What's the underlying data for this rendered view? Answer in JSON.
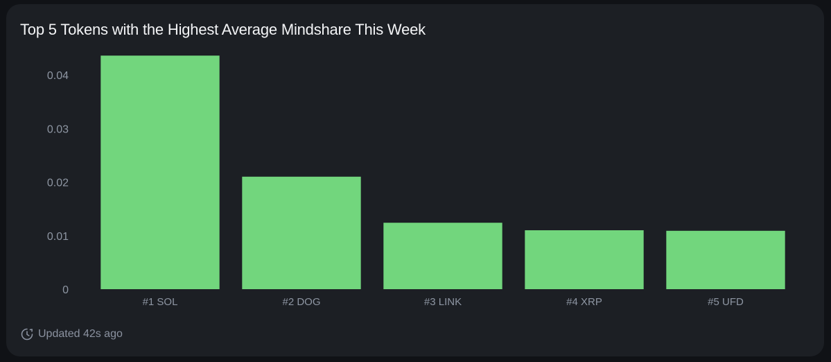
{
  "card": {
    "title": "Top 5 Tokens with the Highest Average Mindshare This Week",
    "updated_text": "Updated 42s ago",
    "updated_icon": "clock-refresh-icon"
  },
  "colors": {
    "bar": "#72d67d",
    "background": "#1c1f24",
    "tick_text": "#8e96a3"
  },
  "chart_data": {
    "type": "bar",
    "title": "Top 5 Tokens with the Highest Average Mindshare This Week",
    "categories": [
      "#1 SOL",
      "#2 DOG",
      "#3 LINK",
      "#4 XRP",
      "#5 UFD"
    ],
    "values": [
      0.0436,
      0.021,
      0.0124,
      0.011,
      0.0109
    ],
    "ylim": [
      0,
      0.04
    ],
    "yticks": [
      "0",
      "0.01",
      "0.02",
      "0.03",
      "0.04"
    ],
    "ytick_values": [
      0,
      0.01,
      0.02,
      0.03,
      0.04
    ],
    "xlabel": "",
    "ylabel": "",
    "grid": false,
    "legend": "none"
  }
}
